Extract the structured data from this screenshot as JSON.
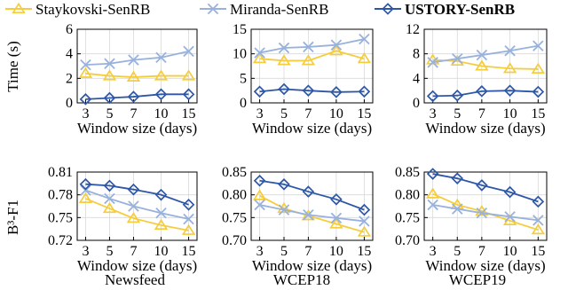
{
  "legend": [
    {
      "name": "Staykovski-SenRB",
      "color": "#f5cd3c",
      "marker": "triangle",
      "bold": false
    },
    {
      "name": "Miranda-SenRB",
      "color": "#98b2dd",
      "marker": "x",
      "bold": false
    },
    {
      "name": "USTORY-SenRB",
      "color": "#2d57a6",
      "marker": "diamond",
      "bold": true
    }
  ],
  "rows": {
    "top_ylabel": "Time (s)",
    "bottom_ylabel": "B³-F1",
    "xlabel": "Window size (days)"
  },
  "datasets": [
    "Newsfeed",
    "WCEP18",
    "WCEP19"
  ],
  "chart_data": [
    {
      "type": "line",
      "panel": "time-newsfeed",
      "x": [
        3,
        5,
        7,
        10,
        15
      ],
      "xticks": [
        "3",
        "5",
        "7",
        "10",
        "15"
      ],
      "ylim": [
        0,
        6
      ],
      "yticks": [
        "0",
        "2",
        "4",
        "6"
      ],
      "ytick_values": [
        0,
        2,
        4,
        6
      ],
      "xlabel": "Window size (days)",
      "ylabel": "Time (s)",
      "series": [
        {
          "name": "Staykovski-SenRB",
          "values": [
            2.4,
            2.2,
            2.1,
            2.2,
            2.2
          ]
        },
        {
          "name": "Miranda-SenRB",
          "values": [
            3.1,
            3.2,
            3.5,
            3.7,
            4.2
          ]
        },
        {
          "name": "USTORY-SenRB",
          "values": [
            0.3,
            0.4,
            0.5,
            0.7,
            0.7
          ]
        }
      ]
    },
    {
      "type": "line",
      "panel": "time-wcep18",
      "x": [
        3,
        5,
        7,
        10,
        15
      ],
      "xticks": [
        "3",
        "5",
        "7",
        "10",
        "15"
      ],
      "ylim": [
        0,
        15
      ],
      "yticks": [
        "0",
        "5",
        "10",
        "15"
      ],
      "ytick_values": [
        0,
        5,
        10,
        15
      ],
      "xlabel": "Window size (days)",
      "ylabel": "",
      "series": [
        {
          "name": "Staykovski-SenRB",
          "values": [
            9.0,
            8.6,
            8.6,
            10.6,
            9.0
          ]
        },
        {
          "name": "Miranda-SenRB",
          "values": [
            10.2,
            11.2,
            11.4,
            11.8,
            13.0
          ]
        },
        {
          "name": "USTORY-SenRB",
          "values": [
            2.3,
            2.8,
            2.5,
            2.2,
            2.3
          ]
        }
      ]
    },
    {
      "type": "line",
      "panel": "time-wcep19",
      "x": [
        3,
        5,
        7,
        10,
        15
      ],
      "xticks": [
        "3",
        "5",
        "7",
        "10",
        "15"
      ],
      "ylim": [
        0,
        12
      ],
      "yticks": [
        "0",
        "4",
        "8",
        "12"
      ],
      "ytick_values": [
        0,
        4,
        8,
        12
      ],
      "xlabel": "Window size (days)",
      "ylabel": "",
      "series": [
        {
          "name": "Staykovski-SenRB",
          "values": [
            7.0,
            6.8,
            6.0,
            5.6,
            5.5
          ]
        },
        {
          "name": "Miranda-SenRB",
          "values": [
            6.6,
            7.2,
            7.8,
            8.5,
            9.3
          ]
        },
        {
          "name": "USTORY-SenRB",
          "values": [
            1.1,
            1.2,
            1.9,
            2.0,
            1.8
          ]
        }
      ]
    },
    {
      "type": "line",
      "panel": "f1-newsfeed",
      "x": [
        3,
        5,
        7,
        10,
        15
      ],
      "xticks": [
        "3",
        "5",
        "7",
        "10",
        "15"
      ],
      "ylim": [
        0.72,
        0.81
      ],
      "yticks": [
        "0.72",
        "0.75",
        "0.78",
        "0.81"
      ],
      "ytick_values": [
        0.72,
        0.75,
        0.78,
        0.81
      ],
      "xlabel": "Window size (days)",
      "ylabel": "B³-F1",
      "series": [
        {
          "name": "Staykovski-SenRB",
          "values": [
            0.775,
            0.762,
            0.749,
            0.74,
            0.733
          ]
        },
        {
          "name": "Miranda-SenRB",
          "values": [
            0.786,
            0.775,
            0.765,
            0.756,
            0.748
          ]
        },
        {
          "name": "USTORY-SenRB",
          "values": [
            0.794,
            0.792,
            0.787,
            0.78,
            0.767
          ]
        }
      ]
    },
    {
      "type": "line",
      "panel": "f1-wcep18",
      "x": [
        3,
        5,
        7,
        10,
        15
      ],
      "xticks": [
        "3",
        "5",
        "7",
        "10",
        "15"
      ],
      "ylim": [
        0.7,
        0.85
      ],
      "yticks": [
        "0.70",
        "0.75",
        "0.80",
        "0.85"
      ],
      "ytick_values": [
        0.7,
        0.75,
        0.8,
        0.85
      ],
      "xlabel": "Window size (days)",
      "ylabel": "",
      "series": [
        {
          "name": "Staykovski-SenRB",
          "values": [
            0.798,
            0.77,
            0.754,
            0.736,
            0.718
          ]
        },
        {
          "name": "Miranda-SenRB",
          "values": [
            0.778,
            0.767,
            0.756,
            0.749,
            0.742
          ]
        },
        {
          "name": "USTORY-SenRB",
          "values": [
            0.831,
            0.823,
            0.807,
            0.79,
            0.767
          ]
        }
      ]
    },
    {
      "type": "line",
      "panel": "f1-wcep19",
      "x": [
        3,
        5,
        7,
        10,
        15
      ],
      "xticks": [
        "3",
        "5",
        "7",
        "10",
        "15"
      ],
      "ylim": [
        0.7,
        0.85
      ],
      "yticks": [
        "0.70",
        "0.75",
        "0.80",
        "0.85"
      ],
      "ytick_values": [
        0.7,
        0.75,
        0.8,
        0.85
      ],
      "xlabel": "Window size (days)",
      "ylabel": "",
      "series": [
        {
          "name": "Staykovski-SenRB",
          "values": [
            0.802,
            0.778,
            0.764,
            0.743,
            0.723
          ]
        },
        {
          "name": "Miranda-SenRB",
          "values": [
            0.778,
            0.769,
            0.76,
            0.752,
            0.744
          ]
        },
        {
          "name": "USTORY-SenRB",
          "values": [
            0.846,
            0.836,
            0.821,
            0.806,
            0.785
          ]
        }
      ]
    }
  ]
}
